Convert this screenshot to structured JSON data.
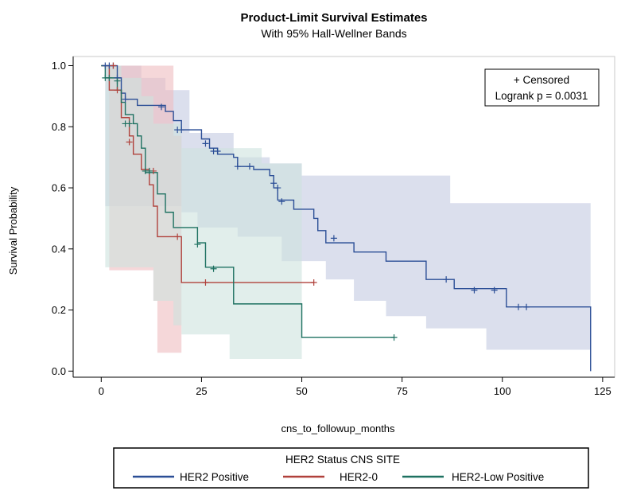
{
  "chart_data": {
    "type": "line",
    "title": "Product-Limit Survival Estimates",
    "subtitle": "With 95% Hall-Wellner Bands",
    "xlabel": "cns_to_followup_months",
    "ylabel": "Survival Probability",
    "xlim": [
      -7,
      128
    ],
    "ylim": [
      -0.02,
      1.03
    ],
    "x_ticks": [
      0,
      25,
      50,
      75,
      100,
      125
    ],
    "x_tick_labels": [
      "0",
      "25",
      "50",
      "75",
      "100",
      "125"
    ],
    "y_ticks": [
      0.0,
      0.2,
      0.4,
      0.6,
      0.8,
      1.0
    ],
    "y_tick_labels": [
      "0.0",
      "0.2",
      "0.4",
      "0.6",
      "0.8",
      "1.0"
    ],
    "inset": {
      "line1": "+ Censored",
      "line2": "Logrank p = 0.0031",
      "placement": "top-right"
    },
    "legend": {
      "title": "HER2 Status CNS SITE",
      "placement": "bottom",
      "entries": [
        "HER2 Positive",
        "HER2-0",
        "HER2-Low Positive"
      ]
    },
    "series": [
      {
        "name": "HER2 Positive",
        "color": "#2b4e96",
        "band_color": "#c3c9e1",
        "steps": [
          [
            0,
            1.0
          ],
          [
            4,
            0.96
          ],
          [
            5,
            0.91
          ],
          [
            6,
            0.89
          ],
          [
            9,
            0.87
          ],
          [
            16,
            0.85
          ],
          [
            18,
            0.82
          ],
          [
            20,
            0.79
          ],
          [
            25,
            0.76
          ],
          [
            27,
            0.73
          ],
          [
            29,
            0.71
          ],
          [
            33,
            0.7
          ],
          [
            34,
            0.67
          ],
          [
            38,
            0.66
          ],
          [
            42,
            0.64
          ],
          [
            43,
            0.6
          ],
          [
            44,
            0.56
          ],
          [
            48,
            0.53
          ],
          [
            53,
            0.5
          ],
          [
            54,
            0.46
          ],
          [
            56,
            0.42
          ],
          [
            63,
            0.39
          ],
          [
            71,
            0.36
          ],
          [
            81,
            0.3
          ],
          [
            88,
            0.27
          ],
          [
            101,
            0.21
          ],
          [
            122,
            0.21
          ],
          [
            122,
            0.0
          ]
        ],
        "censored": [
          [
            1,
            1.0
          ],
          [
            2,
            1.0
          ],
          [
            3,
            1.0
          ],
          [
            4,
            0.96
          ],
          [
            6,
            0.89
          ],
          [
            15,
            0.865
          ],
          [
            19,
            0.79
          ],
          [
            20,
            0.79
          ],
          [
            26,
            0.745
          ],
          [
            28,
            0.72
          ],
          [
            29,
            0.72
          ],
          [
            34,
            0.67
          ],
          [
            37,
            0.67
          ],
          [
            43,
            0.615
          ],
          [
            44,
            0.6
          ],
          [
            45,
            0.555
          ],
          [
            58,
            0.435
          ],
          [
            86,
            0.3
          ],
          [
            93,
            0.265
          ],
          [
            98,
            0.265
          ],
          [
            104,
            0.21
          ],
          [
            106,
            0.21
          ]
        ],
        "band_upper": [
          [
            1,
            1.0
          ],
          [
            9,
            1.0
          ],
          [
            10,
            0.96
          ],
          [
            16,
            0.92
          ],
          [
            22,
            0.78
          ],
          [
            33,
            0.7
          ],
          [
            38,
            0.7
          ],
          [
            42,
            0.68
          ],
          [
            50,
            0.64
          ],
          [
            87,
            0.55
          ],
          [
            122,
            0.55
          ]
        ],
        "band_lower": [
          [
            1,
            0.54
          ],
          [
            13,
            0.54
          ],
          [
            20,
            0.52
          ],
          [
            24,
            0.47
          ],
          [
            30,
            0.47
          ],
          [
            34,
            0.44
          ],
          [
            45,
            0.36
          ],
          [
            56,
            0.3
          ],
          [
            63,
            0.23
          ],
          [
            71,
            0.18
          ],
          [
            81,
            0.14
          ],
          [
            96,
            0.07
          ],
          [
            122,
            0.02
          ]
        ]
      },
      {
        "name": "HER2-0",
        "color": "#b0413b",
        "band_color": "#efbcbf",
        "steps": [
          [
            0,
            1.0
          ],
          [
            2,
            0.92
          ],
          [
            5,
            0.83
          ],
          [
            7,
            0.77
          ],
          [
            8,
            0.71
          ],
          [
            10,
            0.66
          ],
          [
            12,
            0.61
          ],
          [
            13,
            0.54
          ],
          [
            14,
            0.44
          ],
          [
            20,
            0.29
          ],
          [
            53,
            0.29
          ]
        ],
        "censored": [
          [
            3,
            1.0
          ],
          [
            4,
            0.92
          ],
          [
            7,
            0.75
          ],
          [
            13,
            0.655
          ],
          [
            19,
            0.44
          ],
          [
            26,
            0.29
          ],
          [
            53,
            0.29
          ]
        ],
        "band_upper": [
          [
            2,
            1.0
          ],
          [
            17,
            1.0
          ],
          [
            18,
            0.77
          ],
          [
            20,
            0.77
          ]
        ],
        "band_lower": [
          [
            2,
            0.33
          ],
          [
            10,
            0.33
          ],
          [
            13,
            0.23
          ],
          [
            14,
            0.06
          ],
          [
            20,
            0.06
          ]
        ]
      },
      {
        "name": "HER2-Low Positive",
        "color": "#1e7161",
        "band_color": "#cde3dd",
        "steps": [
          [
            0,
            1.0
          ],
          [
            1,
            0.96
          ],
          [
            4,
            0.92
          ],
          [
            5,
            0.88
          ],
          [
            6,
            0.84
          ],
          [
            8,
            0.81
          ],
          [
            9,
            0.77
          ],
          [
            10,
            0.73
          ],
          [
            11,
            0.65
          ],
          [
            14,
            0.58
          ],
          [
            16,
            0.52
          ],
          [
            18,
            0.47
          ],
          [
            24,
            0.42
          ],
          [
            26,
            0.34
          ],
          [
            33,
            0.22
          ],
          [
            50,
            0.11
          ],
          [
            73,
            0.11
          ]
        ],
        "censored": [
          [
            1,
            0.96
          ],
          [
            2,
            0.96
          ],
          [
            4,
            0.95
          ],
          [
            6,
            0.81
          ],
          [
            7,
            0.81
          ],
          [
            11,
            0.655
          ],
          [
            12,
            0.655
          ],
          [
            24,
            0.415
          ],
          [
            28,
            0.335
          ],
          [
            73,
            0.11
          ]
        ],
        "band_upper": [
          [
            1,
            1.0
          ],
          [
            4,
            1.0
          ],
          [
            5,
            0.96
          ],
          [
            10,
            0.9
          ],
          [
            13,
            0.81
          ],
          [
            20,
            0.73
          ],
          [
            40,
            0.68
          ],
          [
            50,
            0.68
          ]
        ],
        "band_lower": [
          [
            1,
            0.34
          ],
          [
            9,
            0.34
          ],
          [
            13,
            0.23
          ],
          [
            18,
            0.15
          ],
          [
            20,
            0.12
          ],
          [
            32,
            0.04
          ],
          [
            50,
            0.04
          ]
        ]
      }
    ]
  }
}
